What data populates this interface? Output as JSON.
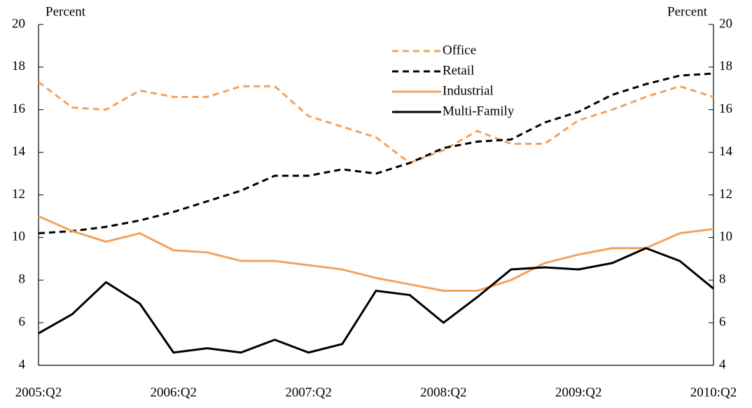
{
  "chart_data": {
    "type": "line",
    "y_label": "Percent",
    "y2_label": "Percent",
    "categories": [
      "2005:Q2",
      null,
      null,
      null,
      "2006:Q2",
      null,
      null,
      null,
      "2007:Q2",
      null,
      null,
      null,
      "2008:Q2",
      null,
      null,
      null,
      "2009:Q2",
      null,
      null,
      null,
      "2010:Q2"
    ],
    "series": [
      {
        "name": "Office",
        "color": "#f4a15d",
        "dashed": true,
        "values": [
          17.3,
          16.1,
          16.0,
          16.9,
          16.6,
          16.6,
          17.1,
          17.1,
          15.7,
          15.2,
          14.7,
          13.5,
          14.1,
          15.0,
          14.4,
          14.4,
          15.5,
          16.0,
          16.6,
          17.1,
          16.6
        ]
      },
      {
        "name": "Retail",
        "color": "#000000",
        "dashed": true,
        "values": [
          10.2,
          10.3,
          10.5,
          10.8,
          11.2,
          11.7,
          12.2,
          12.9,
          12.9,
          13.2,
          13.0,
          13.5,
          14.2,
          14.5,
          14.6,
          15.4,
          15.9,
          16.7,
          17.2,
          17.6,
          17.7
        ]
      },
      {
        "name": "Industrial",
        "color": "#f4a15d",
        "dashed": false,
        "values": [
          11.0,
          10.3,
          9.8,
          10.2,
          9.4,
          9.3,
          8.9,
          8.9,
          8.7,
          8.5,
          8.1,
          7.8,
          7.5,
          7.5,
          8.0,
          8.8,
          9.2,
          9.5,
          9.5,
          10.2,
          10.4
        ]
      },
      {
        "name": "Multi-Family",
        "color": "#000000",
        "dashed": false,
        "values": [
          5.5,
          6.4,
          7.9,
          6.9,
          4.6,
          4.8,
          4.6,
          5.2,
          4.6,
          5.0,
          7.5,
          7.3,
          6.0,
          7.2,
          8.5,
          8.6,
          8.5,
          8.8,
          9.5,
          8.9,
          7.6
        ]
      }
    ],
    "ylim": [
      4,
      20
    ],
    "yticks": [
      4,
      6,
      8,
      10,
      12,
      14,
      16,
      18,
      20
    ],
    "y2lim": [
      4,
      20
    ],
    "y2ticks": [
      4,
      6,
      8,
      10,
      12,
      14,
      16,
      18,
      20
    ],
    "legend": "upper center",
    "grid": false
  }
}
